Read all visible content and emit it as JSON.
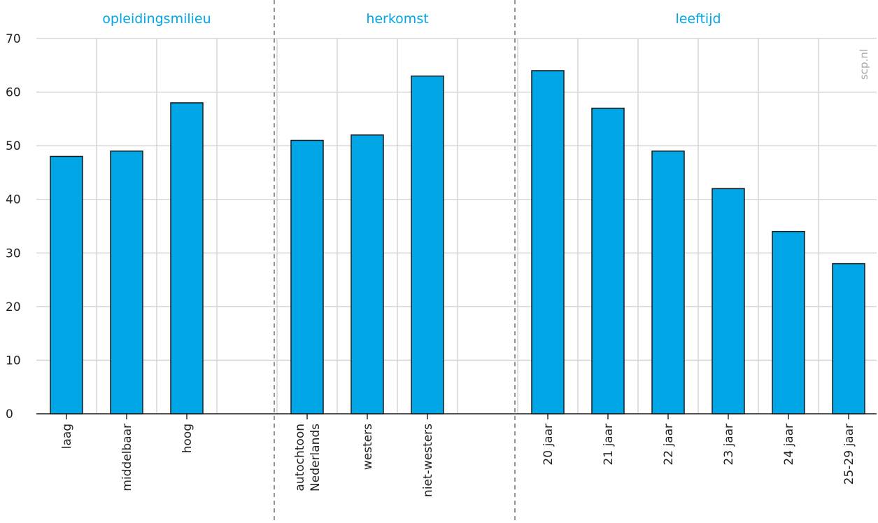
{
  "watermark": "scp.nl",
  "colors": {
    "bar": "#00a6e6",
    "bar_stroke": "#1a1a1a",
    "grid": "#cfcfcf",
    "group_label": "#00a6e6",
    "separator": "#666666"
  },
  "chart_data": {
    "type": "bar",
    "title": "",
    "xlabel": "",
    "ylabel": "",
    "ylim": [
      0,
      70
    ],
    "yticks": [
      0,
      10,
      20,
      30,
      40,
      50,
      60,
      70
    ],
    "grid": true,
    "groups": [
      {
        "name": "opleidingsmilieu",
        "categories": [
          "laag",
          "middelbaar",
          "hoog"
        ],
        "values": [
          48,
          49,
          58
        ]
      },
      {
        "name": "herkomst",
        "categories": [
          "autochtoon Nederlands",
          "westers",
          "niet-westers"
        ],
        "values": [
          51,
          52,
          63
        ]
      },
      {
        "name": "leeftijd",
        "categories": [
          "20 jaar",
          "21 jaar",
          "22 jaar",
          "23 jaar",
          "24 jaar",
          "25-29 jaar"
        ],
        "values": [
          64,
          57,
          49,
          42,
          34,
          28
        ]
      }
    ]
  }
}
